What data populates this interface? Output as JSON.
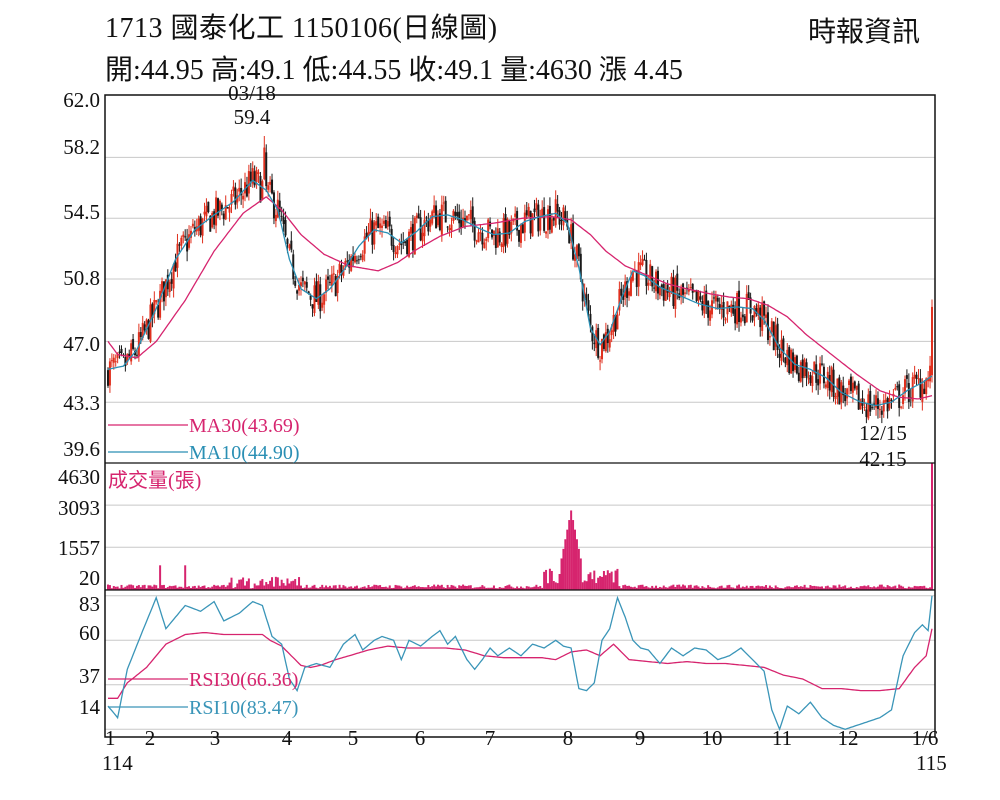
{
  "header": {
    "title": "1713  國泰化工 1150106(日線圖)",
    "source": "時報資訊",
    "ohlc": "開:44.95 高:49.1 低:44.55 收:49.1 量:4630 漲 4.45"
  },
  "colors": {
    "up": "#e0301e",
    "down": "#1a1a1a",
    "ma30": "#d6246e",
    "ma10": "#2a8fb4",
    "volume": "#d6246e",
    "rsi30": "#d6246e",
    "rsi10": "#3a95b8",
    "grid": "#c8c8c8"
  },
  "chart_data": [
    {
      "type": "candlestick",
      "panel": "price",
      "y_ticks": [
        "62.0",
        "58.2",
        "54.5",
        "50.8",
        "47.0",
        "43.3",
        "39.6"
      ],
      "ylim": [
        39.6,
        62.0
      ],
      "series": [
        {
          "name": "MA30(43.69)",
          "color": "#d6246e",
          "values": [
            [
              0,
              47.0
            ],
            [
              5,
              46.2
            ],
            [
              15,
              46.0
            ],
            [
              25,
              47.0
            ],
            [
              40,
              49.5
            ],
            [
              55,
              52.5
            ],
            [
              70,
              54.8
            ],
            [
              82,
              55.8
            ],
            [
              90,
              55.0
            ],
            [
              100,
              53.5
            ],
            [
              112,
              52.3
            ],
            [
              125,
              51.6
            ],
            [
              140,
              51.3
            ],
            [
              150,
              51.8
            ],
            [
              160,
              52.6
            ],
            [
              172,
              53.4
            ],
            [
              185,
              54.0
            ],
            [
              200,
              54.2
            ],
            [
              215,
              54.5
            ],
            [
              230,
              54.6
            ],
            [
              240,
              54.4
            ],
            [
              250,
              53.5
            ],
            [
              258,
              52.5
            ],
            [
              268,
              51.6
            ],
            [
              280,
              51.0
            ],
            [
              290,
              50.5
            ],
            [
              300,
              50.2
            ],
            [
              312,
              49.9
            ],
            [
              322,
              49.7
            ],
            [
              332,
              49.6
            ],
            [
              342,
              49.2
            ],
            [
              352,
              48.5
            ],
            [
              362,
              47.4
            ],
            [
              375,
              46.2
            ],
            [
              388,
              45.0
            ],
            [
              400,
              44.0
            ],
            [
              410,
              43.6
            ],
            [
              420,
              43.5
            ],
            [
              427,
              43.7
            ]
          ]
        },
        {
          "name": "MA10(44.90)",
          "color": "#2a8fb4",
          "values": [
            [
              0,
              45.3
            ],
            [
              8,
              45.5
            ],
            [
              15,
              46.5
            ],
            [
              25,
              49.0
            ],
            [
              35,
              52.0
            ],
            [
              45,
              53.8
            ],
            [
              55,
              54.7
            ],
            [
              65,
              55.5
            ],
            [
              75,
              56.8
            ],
            [
              82,
              56.2
            ],
            [
              88,
              55.0
            ],
            [
              94,
              52.0
            ],
            [
              100,
              50.2
            ],
            [
              108,
              49.6
            ],
            [
              115,
              50.2
            ],
            [
              122,
              51.3
            ],
            [
              130,
              52.8
            ],
            [
              138,
              53.8
            ],
            [
              145,
              53.6
            ],
            [
              152,
              53.0
            ],
            [
              160,
              53.7
            ],
            [
              168,
              54.6
            ],
            [
              176,
              54.7
            ],
            [
              184,
              54.4
            ],
            [
              192,
              53.9
            ],
            [
              200,
              53.5
            ],
            [
              208,
              53.6
            ],
            [
              216,
              54.3
            ],
            [
              224,
              54.6
            ],
            [
              232,
              54.8
            ],
            [
              238,
              54.2
            ],
            [
              244,
              51.5
            ],
            [
              250,
              47.8
            ],
            [
              255,
              46.8
            ],
            [
              260,
              47.6
            ],
            [
              266,
              49.6
            ],
            [
              272,
              51.3
            ],
            [
              278,
              51.0
            ],
            [
              286,
              50.3
            ],
            [
              296,
              49.8
            ],
            [
              306,
              49.3
            ],
            [
              316,
              49.0
            ],
            [
              326,
              49.1
            ],
            [
              334,
              49.0
            ],
            [
              340,
              48.3
            ],
            [
              348,
              46.6
            ],
            [
              356,
              45.6
            ],
            [
              364,
              45.3
            ],
            [
              372,
              44.8
            ],
            [
              380,
              43.9
            ],
            [
              390,
              43.3
            ],
            [
              398,
              43.1
            ],
            [
              406,
              43.3
            ],
            [
              414,
              44.0
            ],
            [
              422,
              44.5
            ],
            [
              427,
              44.9
            ]
          ]
        }
      ],
      "annotations": [
        {
          "label_top": "03/18",
          "label_bottom": "59.4",
          "type": "high"
        },
        {
          "label_top": "12/15",
          "label_bottom": "42.15",
          "type": "low"
        }
      ]
    },
    {
      "type": "bar",
      "panel": "volume",
      "name": "成交量(張)",
      "y_ticks": [
        "4630",
        "3093",
        "1557",
        "20"
      ],
      "ylim": [
        0,
        4630
      ]
    },
    {
      "type": "line",
      "panel": "rsi",
      "y_ticks": [
        "83",
        "60",
        "37",
        "14"
      ],
      "ylim": [
        10,
        86
      ],
      "series": [
        {
          "name": "RSI30(66.36)",
          "color": "#d6246e",
          "values": [
            [
              0,
              30
            ],
            [
              5,
              30
            ],
            [
              10,
              38
            ],
            [
              20,
              46
            ],
            [
              30,
              58
            ],
            [
              40,
              63
            ],
            [
              50,
              64
            ],
            [
              60,
              63
            ],
            [
              70,
              63
            ],
            [
              80,
              63
            ],
            [
              84,
              60
            ],
            [
              90,
              57
            ],
            [
              95,
              52
            ],
            [
              100,
              47
            ],
            [
              105,
              46
            ],
            [
              110,
              47
            ],
            [
              118,
              50
            ],
            [
              125,
              52
            ],
            [
              135,
              55
            ],
            [
              145,
              57
            ],
            [
              155,
              56
            ],
            [
              165,
              56
            ],
            [
              175,
              56
            ],
            [
              185,
              55
            ],
            [
              195,
              52
            ],
            [
              205,
              51
            ],
            [
              215,
              51
            ],
            [
              225,
              51
            ],
            [
              232,
              50
            ],
            [
              240,
              54
            ],
            [
              248,
              55
            ],
            [
              255,
              52
            ],
            [
              262,
              58
            ],
            [
              270,
              50
            ],
            [
              280,
              49
            ],
            [
              290,
              48
            ],
            [
              300,
              49
            ],
            [
              310,
              48
            ],
            [
              320,
              48
            ],
            [
              330,
              47
            ],
            [
              340,
              46
            ],
            [
              350,
              42
            ],
            [
              360,
              40
            ],
            [
              370,
              35
            ],
            [
              380,
              35
            ],
            [
              390,
              34
            ],
            [
              400,
              34
            ],
            [
              410,
              35
            ],
            [
              418,
              46
            ],
            [
              424,
              52
            ],
            [
              427,
              66
            ]
          ]
        },
        {
          "name": "RSI10(83.47)",
          "color": "#3a95b8",
          "values": [
            [
              0,
              26
            ],
            [
              5,
              20
            ],
            [
              10,
              45
            ],
            [
              18,
              65
            ],
            [
              25,
              82
            ],
            [
              30,
              66
            ],
            [
              35,
              72
            ],
            [
              40,
              78
            ],
            [
              48,
              75
            ],
            [
              55,
              80
            ],
            [
              60,
              70
            ],
            [
              68,
              74
            ],
            [
              75,
              80
            ],
            [
              80,
              78
            ],
            [
              85,
              62
            ],
            [
              90,
              58
            ],
            [
              94,
              40
            ],
            [
              98,
              34
            ],
            [
              102,
              46
            ],
            [
              108,
              48
            ],
            [
              115,
              46
            ],
            [
              122,
              58
            ],
            [
              128,
              63
            ],
            [
              132,
              55
            ],
            [
              138,
              60
            ],
            [
              142,
              62
            ],
            [
              148,
              60
            ],
            [
              152,
              50
            ],
            [
              156,
              60
            ],
            [
              162,
              57
            ],
            [
              168,
              62
            ],
            [
              172,
              65
            ],
            [
              176,
              58
            ],
            [
              180,
              62
            ],
            [
              186,
              50
            ],
            [
              190,
              45
            ],
            [
              194,
              50
            ],
            [
              198,
              56
            ],
            [
              202,
              52
            ],
            [
              208,
              56
            ],
            [
              214,
              52
            ],
            [
              220,
              58
            ],
            [
              226,
              56
            ],
            [
              232,
              60
            ],
            [
              236,
              57
            ],
            [
              240,
              56
            ],
            [
              244,
              35
            ],
            [
              248,
              34
            ],
            [
              252,
              38
            ],
            [
              256,
              60
            ],
            [
              260,
              66
            ],
            [
              264,
              82
            ],
            [
              268,
              72
            ],
            [
              272,
              60
            ],
            [
              276,
              56
            ],
            [
              280,
              55
            ],
            [
              286,
              48
            ],
            [
              292,
              56
            ],
            [
              298,
              52
            ],
            [
              304,
              56
            ],
            [
              310,
              55
            ],
            [
              316,
              50
            ],
            [
              322,
              52
            ],
            [
              328,
              56
            ],
            [
              334,
              50
            ],
            [
              340,
              44
            ],
            [
              344,
              24
            ],
            [
              348,
              14
            ],
            [
              352,
              26
            ],
            [
              358,
              22
            ],
            [
              364,
              28
            ],
            [
              370,
              20
            ],
            [
              376,
              16
            ],
            [
              382,
              14
            ],
            [
              388,
              16
            ],
            [
              394,
              18
            ],
            [
              400,
              20
            ],
            [
              406,
              24
            ],
            [
              412,
              52
            ],
            [
              418,
              64
            ],
            [
              422,
              68
            ],
            [
              425,
              65
            ],
            [
              427,
              83
            ]
          ]
        }
      ]
    }
  ],
  "x_axis": {
    "labels": [
      "1",
      "2",
      "3",
      "4",
      "5",
      "6",
      "7",
      "8",
      "9",
      "10",
      "11",
      "12",
      "1/6"
    ],
    "year_left": "114",
    "year_right": "115"
  }
}
